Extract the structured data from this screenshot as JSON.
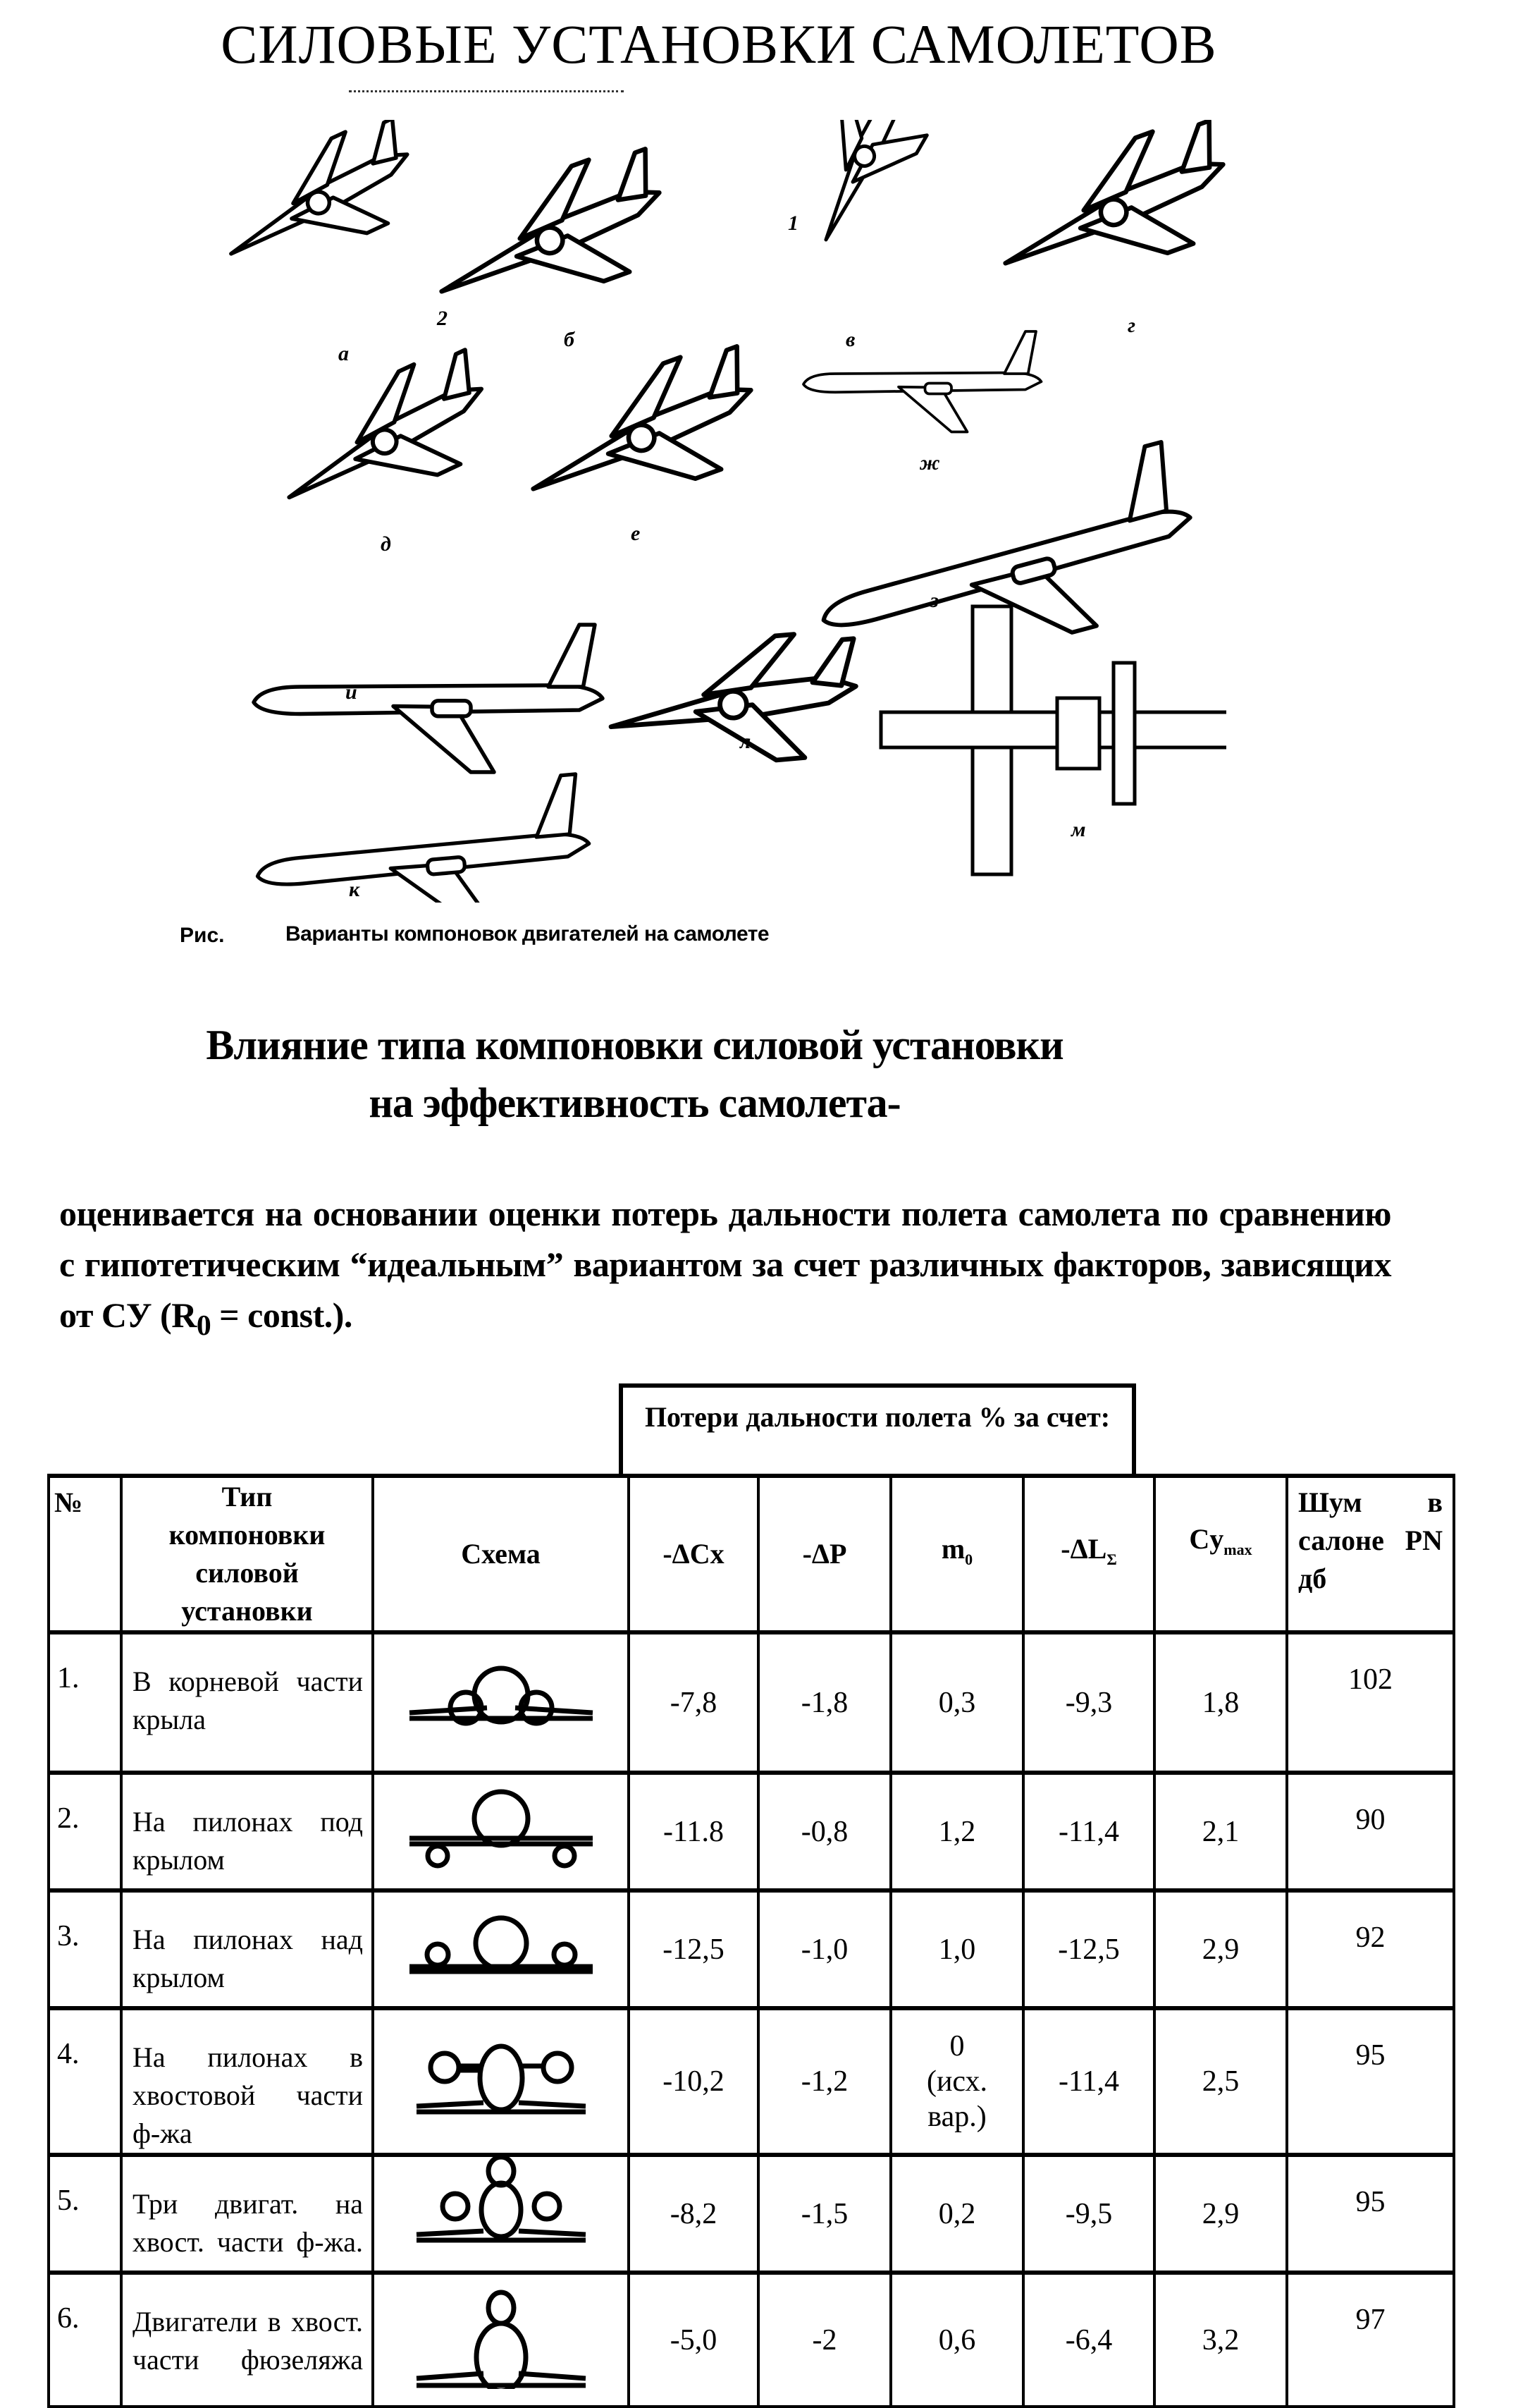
{
  "page": {
    "title": "СИЛОВЫЕ УСТАНОВКИ САМОЛЕТОВ",
    "figure": {
      "labels": [
        "а",
        "б",
        "в",
        "г",
        "д",
        "е",
        "ж",
        "з",
        "и",
        "к",
        "л",
        "м",
        "1",
        "2"
      ],
      "caption_prefix": "Рис.",
      "caption": "Варианты компоновок двигателей на самолете"
    },
    "heading_line1": "Влияние типа компоновки силовой установки",
    "heading_line2": "на эффективность самолета-",
    "paragraph": "оценивается на основании оценки потерь дальности полета самолета по сравнению с гипотетическим “идеальным” вариантом за счет различных факторов, зависящих от СУ (R",
    "paragraph_sub": "0",
    "paragraph_end": " = const.).",
    "table": {
      "group_header": "Потери дальности полета % за счет:",
      "headers": {
        "no": "№",
        "type": "Тип компоновки силовой установки",
        "scheme": "Схема",
        "dcx": "-ΔCx",
        "dp": "-ΔP",
        "m0": "m",
        "m0_sub": "0",
        "dl": "-ΔL",
        "dl_sub": "Σ",
        "cy": "Cy",
        "cy_sub": "max",
        "noise": "Шум в салоне PN дб"
      },
      "rows": [
        {
          "no": "1.",
          "type": "В корневой части крыла",
          "scheme": "root-wing",
          "dcx": "-7,8",
          "dp": "-1,8",
          "m0": "0,3",
          "dl": "-9,3",
          "cy": "1,8",
          "noise": "102"
        },
        {
          "no": "2.",
          "type": "На пилонах под крылом",
          "scheme": "under-wing-pylons",
          "dcx": "-11.8",
          "dp": "-0,8",
          "m0": "1,2",
          "dl": "-11,4",
          "cy": "2,1",
          "noise": "90"
        },
        {
          "no": "3.",
          "type": "На пилонах над крылом",
          "scheme": "over-wing-pylons",
          "dcx": "-12,5",
          "dp": "-1,0",
          "m0": "1,0",
          "dl": "-12,5",
          "cy": "2,9",
          "noise": "92"
        },
        {
          "no": "4.",
          "type": "На пилонах в хвостовой части ф-жа",
          "scheme": "tail-pylons",
          "dcx": "-10,2",
          "dp": "-1,2",
          "m0": "0\n(исх.\nвар.)",
          "dl": "-11,4",
          "cy": "2,5",
          "noise": "95"
        },
        {
          "no": "5.",
          "type": "Три двигат. на хвост. части ф-жа.",
          "scheme": "three-tail",
          "dcx": "-8,2",
          "dp": "-1,5",
          "m0": "0,2",
          "dl": "-9,5",
          "cy": "2,9",
          "noise": "95"
        },
        {
          "no": "6.",
          "type": "Двигатели в хвост. части фюзеляжа",
          "scheme": "tail-top",
          "dcx": "-5,0",
          "dp": "-2",
          "m0": "0,6",
          "dl": "-6,4",
          "cy": "3,2",
          "noise": "97"
        }
      ]
    }
  }
}
